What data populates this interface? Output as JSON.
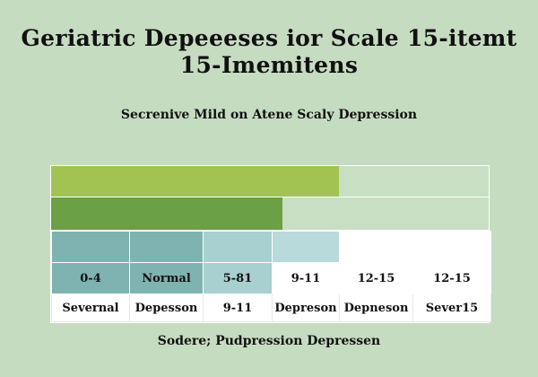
{
  "header": {
    "title_line1": "Geriatric Depeeeses ior Scale 15-itemt",
    "title_line2": "15-Imemitens",
    "subtitle": "Secrenive Mild  on Atene Scaly Depression"
  },
  "bars": [
    {
      "fraction": 0.658,
      "color": "#a2c352"
    },
    {
      "fraction": 0.529,
      "color": "#6ba046"
    }
  ],
  "scale": {
    "colors": [
      "#7fb3b1",
      "#7fb3b1",
      "#a9d0d0",
      "#b8dada",
      "#ffffff",
      "#ffffff"
    ],
    "score_colors": [
      "#7fb3b1",
      "#7fb3b1",
      "#a9d0d0",
      "#ffffff",
      "#ffffff",
      "#ffffff"
    ],
    "scores": [
      "0-4",
      "Normal",
      "5-81",
      "9-11",
      "12-15",
      "12-15"
    ],
    "labels": [
      "Severnal",
      "Depesson",
      "9-11",
      "Depreson",
      "Depneson",
      "Sever15"
    ]
  },
  "footer": {
    "text": "Sodere; Pudpression Depressen"
  }
}
